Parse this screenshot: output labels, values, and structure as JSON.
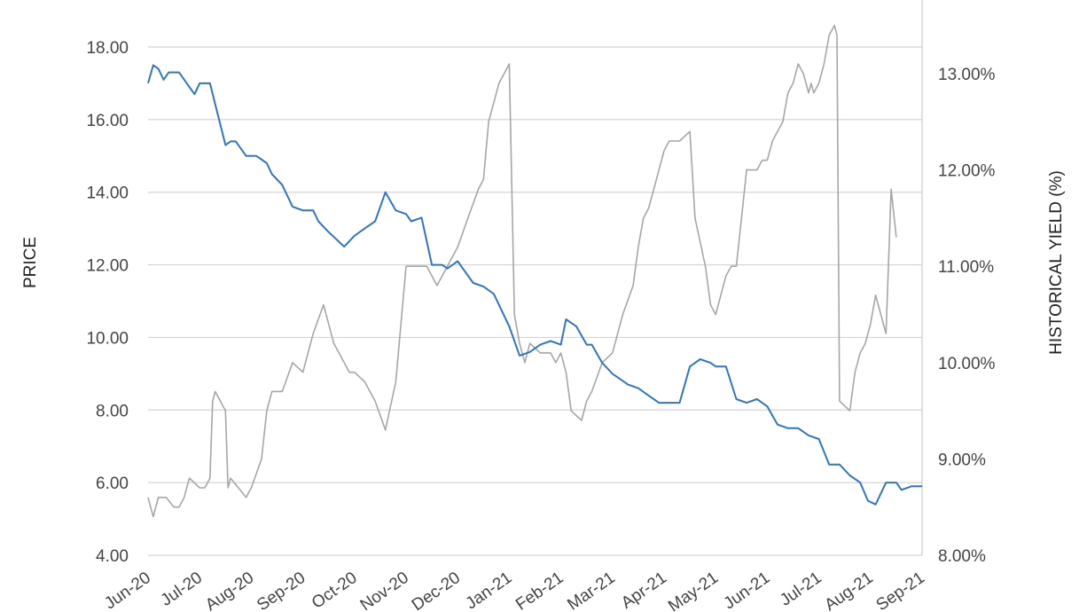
{
  "chart_data": {
    "type": "line",
    "title": "",
    "ylabel": "PRICE",
    "y2label": "HISTORICAL YIELD (%)",
    "xlabel": "",
    "ylim": [
      4,
      19
    ],
    "y2lim": [
      8,
      13.5
    ],
    "yticks": [
      "4.00",
      "6.00",
      "8.00",
      "10.00",
      "12.00",
      "14.00",
      "16.00",
      "18.00"
    ],
    "y2ticks": [
      "8.00%",
      "9.00%",
      "10.00%",
      "11.00%",
      "12.00%",
      "13.00%"
    ],
    "x_categories": [
      "Jun-20",
      "Jul-20",
      "Aug-20",
      "Sep-20",
      "Oct-20",
      "Nov-20",
      "Dec-20",
      "Jan-21",
      "Feb-21",
      "Mar-21",
      "Apr-21",
      "May-21",
      "Jun-21",
      "Jul-21",
      "Aug-21",
      "Sep-21"
    ],
    "grid": true,
    "legend": "none",
    "series": [
      {
        "axis": "left",
        "color": "#2f75c6",
        "x": [
          0,
          0.1,
          0.2,
          0.3,
          0.4,
          0.6,
          0.9,
          1.0,
          1.2,
          1.5,
          1.6,
          1.7,
          1.9,
          2.1,
          2.3,
          2.4,
          2.6,
          2.8,
          3.0,
          3.2,
          3.3,
          3.5,
          3.8,
          4.0,
          4.2,
          4.4,
          4.6,
          4.8,
          5.0,
          5.1,
          5.3,
          5.5,
          5.7,
          5.8,
          6.0,
          6.1,
          6.3,
          6.5,
          6.7,
          6.9,
          7.0,
          7.2,
          7.4,
          7.6,
          7.8,
          8.0,
          8.1,
          8.3,
          8.5,
          8.6,
          8.8,
          9.0,
          9.1,
          9.3,
          9.5,
          9.7,
          9.9,
          10.1,
          10.3,
          10.5,
          10.7,
          10.9,
          11.0,
          11.2,
          11.4,
          11.6,
          11.8,
          12.0,
          12.2,
          12.4,
          12.6,
          12.8,
          13.0,
          13.2,
          13.4,
          13.6,
          13.8,
          13.95,
          14.1,
          14.3,
          14.5,
          14.6,
          14.8,
          15.0
        ],
        "y": [
          17.0,
          17.5,
          17.4,
          17.1,
          17.3,
          17.3,
          16.7,
          17.0,
          17.0,
          15.3,
          15.4,
          15.4,
          15.0,
          15.0,
          14.8,
          14.5,
          14.2,
          13.6,
          13.5,
          13.5,
          13.2,
          12.9,
          12.5,
          12.8,
          13.0,
          13.2,
          14.0,
          13.5,
          13.4,
          13.2,
          13.3,
          12.0,
          12.0,
          11.9,
          12.1,
          11.9,
          11.5,
          11.4,
          11.2,
          10.6,
          10.3,
          9.5,
          9.6,
          9.8,
          9.9,
          9.8,
          10.5,
          10.3,
          9.8,
          9.8,
          9.3,
          9.0,
          8.9,
          8.7,
          8.6,
          8.4,
          8.2,
          8.2,
          8.2,
          9.2,
          9.4,
          9.3,
          9.2,
          9.2,
          8.3,
          8.2,
          8.3,
          8.1,
          7.6,
          7.5,
          7.5,
          7.3,
          7.2,
          6.5,
          6.5,
          6.2,
          6.0,
          5.5,
          5.4,
          6.0,
          6.0,
          5.8,
          5.9,
          5.9
        ]
      },
      {
        "axis": "right",
        "color": "#a6a6a6",
        "x": [
          0,
          0.1,
          0.2,
          0.35,
          0.5,
          0.6,
          0.7,
          0.8,
          1.0,
          1.1,
          1.2,
          1.25,
          1.3,
          1.4,
          1.5,
          1.55,
          1.6,
          1.75,
          1.9,
          2.0,
          2.2,
          2.3,
          2.4,
          2.6,
          2.8,
          3.0,
          3.2,
          3.4,
          3.6,
          3.8,
          3.9,
          4.0,
          4.2,
          4.4,
          4.6,
          4.8,
          4.9,
          5.0,
          5.2,
          5.4,
          5.6,
          5.7,
          5.8,
          6.0,
          6.2,
          6.4,
          6.5,
          6.6,
          6.8,
          6.9,
          7.0,
          7.1,
          7.2,
          7.3,
          7.4,
          7.6,
          7.7,
          7.8,
          7.9,
          8.0,
          8.1,
          8.2,
          8.4,
          8.5,
          8.6,
          8.8,
          9.0,
          9.1,
          9.2,
          9.4,
          9.5,
          9.6,
          9.7,
          9.8,
          10.0,
          10.1,
          10.3,
          10.5,
          10.6,
          10.8,
          10.9,
          11.0,
          11.2,
          11.3,
          11.4,
          11.6,
          11.8,
          11.9,
          12.0,
          12.1,
          12.3,
          12.4,
          12.5,
          12.6,
          12.7,
          12.8,
          12.85,
          12.9,
          13.0,
          13.1,
          13.2,
          13.3,
          13.35,
          13.4,
          13.6,
          13.7,
          13.8,
          13.9,
          14.0,
          14.1,
          14.3,
          14.4,
          14.5
        ],
        "y": [
          8.6,
          8.4,
          8.6,
          8.6,
          8.5,
          8.5,
          8.6,
          8.8,
          8.7,
          8.7,
          8.8,
          9.6,
          9.7,
          9.6,
          9.5,
          8.7,
          8.8,
          8.7,
          8.6,
          8.7,
          9.0,
          9.5,
          9.7,
          9.7,
          10.0,
          9.9,
          10.3,
          10.6,
          10.2,
          10.0,
          9.9,
          9.9,
          9.8,
          9.6,
          9.3,
          9.8,
          10.4,
          11.0,
          11.0,
          11.0,
          10.8,
          10.9,
          11.0,
          11.2,
          11.5,
          11.8,
          11.9,
          12.5,
          12.9,
          13.0,
          13.1,
          10.5,
          10.2,
          10.0,
          10.2,
          10.1,
          10.1,
          10.1,
          10.0,
          10.1,
          9.9,
          9.5,
          9.4,
          9.6,
          9.7,
          10.0,
          10.1,
          10.3,
          10.5,
          10.8,
          11.2,
          11.5,
          11.6,
          11.8,
          12.2,
          12.3,
          12.3,
          12.4,
          11.5,
          11.0,
          10.6,
          10.5,
          10.9,
          11.0,
          11.0,
          12.0,
          12.0,
          12.1,
          12.1,
          12.3,
          12.5,
          12.8,
          12.9,
          13.1,
          13.0,
          12.8,
          12.9,
          12.8,
          12.9,
          13.1,
          13.4,
          13.5,
          13.4,
          9.6,
          9.5,
          9.9,
          10.1,
          10.2,
          10.4,
          10.7,
          10.3,
          11.8,
          11.3
        ]
      }
    ]
  }
}
